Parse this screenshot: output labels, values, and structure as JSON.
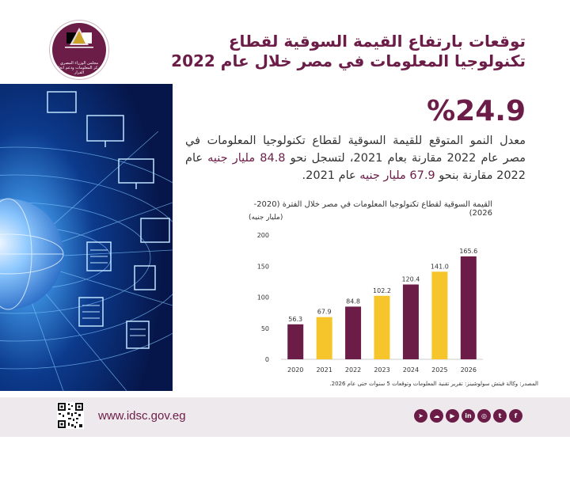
{
  "header": {
    "title": "توقعات بارتفاع القيمة السوقية لقطاع تكنولوجيا المعلومات في مصر خلال عام 2022",
    "logo_text": "مجلس الوزراء المصري مركز المعلومات ودعم اتخاذ القرار"
  },
  "highlight": {
    "percent": "%24.9",
    "text_part1": "معدل النمو المتوقع للقيمة السوقية لقطاع تكنولوجيا المعلومات في مصر عام 2022 مقارنة بعام 2021، لتسجل نحو ",
    "value_2022": "84.8 مليار جنيه",
    "text_part2": " عام 2022 مقارنة بنحو ",
    "value_2021": "67.9 مليار جنيه",
    "text_part3": " عام 2021."
  },
  "chart_data": {
    "type": "bar",
    "title": "القيمة السوقية لقطاع تكنولوجيا المعلومات في مصر خلال الفترة (2020- 2026)",
    "ylabel": "(مليار جنيه)",
    "categories": [
      "2020",
      "2021",
      "2022",
      "2023",
      "2024",
      "2025",
      "2026"
    ],
    "values": [
      56.3,
      67.9,
      84.8,
      102.2,
      120.4,
      141.0,
      165.6
    ],
    "value_labels": [
      "56.3",
      "67.9",
      "84.8",
      "102.2",
      "120.4",
      "141.0",
      "165.6"
    ],
    "ylim": [
      0,
      200
    ],
    "yticks": [
      "0",
      "50",
      "100",
      "150",
      "200"
    ],
    "grid": false,
    "legend": "none",
    "bar_colors": [
      "#6b1d48",
      "#f6c42b",
      "#6b1d48",
      "#f6c42b",
      "#6b1d48",
      "#f6c42b",
      "#6b1d48"
    ]
  },
  "source": "المصدر: وكالة فيتش سولوشينز: تقرير تقنية المعلومات وتوقعات 5 سنوات حتى عام 2026.",
  "footer": {
    "website": "www.idsc.gov.eg",
    "socials": [
      {
        "icon": "telegram-icon",
        "glyph": "➤"
      },
      {
        "icon": "soundcloud-icon",
        "glyph": "☁"
      },
      {
        "icon": "youtube-icon",
        "glyph": "▶"
      },
      {
        "icon": "linkedin-icon",
        "glyph": "in"
      },
      {
        "icon": "instagram-icon",
        "glyph": "◎"
      },
      {
        "icon": "twitter-icon",
        "glyph": "t"
      },
      {
        "icon": "facebook-icon",
        "glyph": "f"
      }
    ]
  },
  "colors": {
    "brand": "#6b1d48",
    "accent": "#f6c42b",
    "footer_bg": "#eee9ec"
  }
}
